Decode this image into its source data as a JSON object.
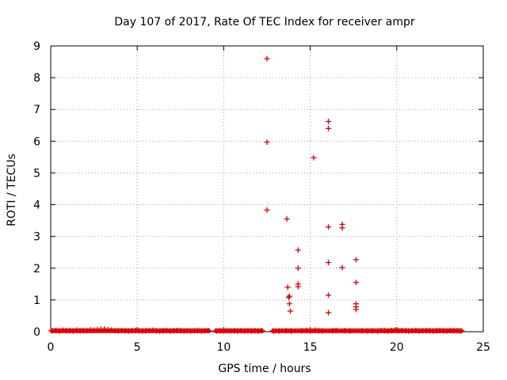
{
  "chart_data": {
    "type": "scatter",
    "title": "Day 107 of 2017, Rate Of TEC Index for receiver ampr",
    "xlabel": "GPS time / hours",
    "ylabel": "ROTI / TECUs",
    "xlim": [
      0,
      25
    ],
    "ylim": [
      0,
      9
    ],
    "xticks": [
      "0",
      "5",
      "10",
      "15",
      "20",
      "25"
    ],
    "yticks": [
      "0",
      "1",
      "2",
      "3",
      "4",
      "5",
      "6",
      "7",
      "8",
      "9"
    ],
    "grid": true,
    "marker": "+",
    "color": "#dd0000",
    "series": [
      {
        "points": [
          [
            0.1,
            0.03
          ],
          [
            0.3,
            0.04
          ],
          [
            0.5,
            0.02
          ],
          [
            0.7,
            0.05
          ],
          [
            0.9,
            0.03
          ],
          [
            1.1,
            0.04
          ],
          [
            1.3,
            0.02
          ],
          [
            1.5,
            0.05
          ],
          [
            1.7,
            0.03
          ],
          [
            1.9,
            0.04
          ],
          [
            2.1,
            0.03
          ],
          [
            2.3,
            0.06
          ],
          [
            2.5,
            0.05
          ],
          [
            2.7,
            0.07
          ],
          [
            2.9,
            0.08
          ],
          [
            3.1,
            0.09
          ],
          [
            3.3,
            0.07
          ],
          [
            3.5,
            0.05
          ],
          [
            3.7,
            0.04
          ],
          [
            3.9,
            0.03
          ],
          [
            4.1,
            0.04
          ],
          [
            4.3,
            0.03
          ],
          [
            4.5,
            0.02
          ],
          [
            4.7,
            0.03
          ],
          [
            4.9,
            0.04
          ],
          [
            5.1,
            0.03
          ],
          [
            5.3,
            0.02
          ],
          [
            5.5,
            0.03
          ],
          [
            5.7,
            0.04
          ],
          [
            5.9,
            0.05
          ],
          [
            6.1,
            0.03
          ],
          [
            6.3,
            0.02
          ],
          [
            6.5,
            0.03
          ],
          [
            6.7,
            0.04
          ],
          [
            6.9,
            0.02
          ],
          [
            7.1,
            0.03
          ],
          [
            7.3,
            0.04
          ],
          [
            7.5,
            0.03
          ],
          [
            7.7,
            0.02
          ],
          [
            7.9,
            0.03
          ],
          [
            8.1,
            0.02
          ],
          [
            8.3,
            0.03
          ],
          [
            8.5,
            0.04
          ],
          [
            8.7,
            0.02
          ],
          [
            8.9,
            0.03
          ],
          [
            9.1,
            0.04
          ],
          [
            9.6,
            0.02
          ],
          [
            9.8,
            0.03
          ],
          [
            10.0,
            0.02
          ],
          [
            10.2,
            0.03
          ],
          [
            10.4,
            0.02
          ],
          [
            10.6,
            0.03
          ],
          [
            10.8,
            0.02
          ],
          [
            11.0,
            0.03
          ],
          [
            11.2,
            0.02
          ],
          [
            11.4,
            0.03
          ],
          [
            11.6,
            0.02
          ],
          [
            11.8,
            0.03
          ],
          [
            12.0,
            0.02
          ],
          [
            12.2,
            0.03
          ],
          [
            12.5,
            8.6
          ],
          [
            12.5,
            5.97
          ],
          [
            12.5,
            3.83
          ],
          [
            12.9,
            0.01
          ],
          [
            13.2,
            0.02
          ],
          [
            13.6,
            0.03
          ],
          [
            13.9,
            0.02
          ],
          [
            13.65,
            3.55
          ],
          [
            13.7,
            1.4
          ],
          [
            13.75,
            1.08
          ],
          [
            13.8,
            1.12
          ],
          [
            13.8,
            0.88
          ],
          [
            13.85,
            0.65
          ],
          [
            14.3,
            2.57
          ],
          [
            14.3,
            2.0
          ],
          [
            14.3,
            1.5
          ],
          [
            14.3,
            1.42
          ],
          [
            14.5,
            0.03
          ],
          [
            14.8,
            0.04
          ],
          [
            15.0,
            0.02
          ],
          [
            15.2,
            5.48
          ],
          [
            15.3,
            0.05
          ],
          [
            15.5,
            0.03
          ],
          [
            15.7,
            0.02
          ],
          [
            16.05,
            6.62
          ],
          [
            16.05,
            6.4
          ],
          [
            16.05,
            3.3
          ],
          [
            16.05,
            2.18
          ],
          [
            16.05,
            1.15
          ],
          [
            16.05,
            0.6
          ],
          [
            16.3,
            0.03
          ],
          [
            16.5,
            0.04
          ],
          [
            16.85,
            3.38
          ],
          [
            16.85,
            3.27
          ],
          [
            16.85,
            2.02
          ],
          [
            17.0,
            0.03
          ],
          [
            17.3,
            0.02
          ],
          [
            17.65,
            2.27
          ],
          [
            17.65,
            1.55
          ],
          [
            17.65,
            0.88
          ],
          [
            17.65,
            0.78
          ],
          [
            17.65,
            0.7
          ],
          [
            18.0,
            0.03
          ],
          [
            18.3,
            0.02
          ],
          [
            18.6,
            0.03
          ],
          [
            18.9,
            0.02
          ],
          [
            19.1,
            0.04
          ],
          [
            19.3,
            0.03
          ],
          [
            19.5,
            0.02
          ],
          [
            19.7,
            0.04
          ],
          [
            19.9,
            0.05
          ],
          [
            20.1,
            0.03
          ],
          [
            20.3,
            0.04
          ],
          [
            20.5,
            0.03
          ],
          [
            20.7,
            0.02
          ],
          [
            20.9,
            0.03
          ],
          [
            21.1,
            0.04
          ],
          [
            21.3,
            0.02
          ],
          [
            21.5,
            0.03
          ],
          [
            21.7,
            0.04
          ],
          [
            21.9,
            0.03
          ],
          [
            22.1,
            0.02
          ],
          [
            22.3,
            0.03
          ],
          [
            22.5,
            0.04
          ],
          [
            22.7,
            0.03
          ],
          [
            22.9,
            0.02
          ],
          [
            23.1,
            0.03
          ],
          [
            23.3,
            0.04
          ],
          [
            23.5,
            0.03
          ],
          [
            23.7,
            0.02
          ]
        ]
      }
    ]
  }
}
